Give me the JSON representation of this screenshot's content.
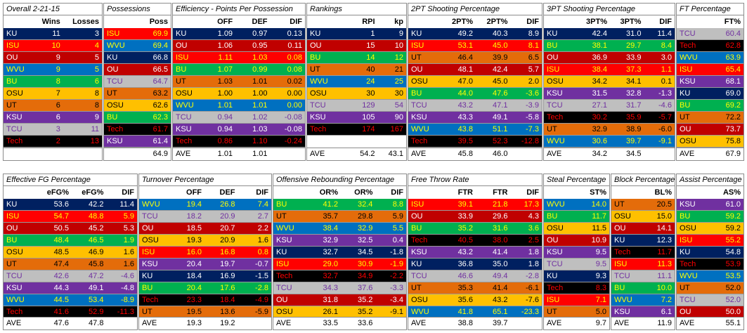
{
  "colors": {
    "KU": {
      "bg": "#002060",
      "fg": "#ffffff"
    },
    "ISU": {
      "bg": "#ff0000",
      "fg": "#ffff00"
    },
    "OU": {
      "bg": "#c00000",
      "fg": "#ffffff"
    },
    "WVU": {
      "bg": "#0070c0",
      "fg": "#ffff00"
    },
    "BU": {
      "bg": "#00b050",
      "fg": "#ffff00"
    },
    "OSU": {
      "bg": "#ffc000",
      "fg": "#000000"
    },
    "UT": {
      "bg": "#e46c0a",
      "fg": "#000000"
    },
    "KSU": {
      "bg": "#7030a0",
      "fg": "#ffffff"
    },
    "TCU": {
      "bg": "#bfbfbf",
      "fg": "#7030a0"
    },
    "Tech": {
      "bg": "#000000",
      "fg": "#ff0000"
    }
  },
  "tables": [
    {
      "title": "Overall 2-21-15",
      "headers": [
        "",
        "Wins",
        "Losses"
      ],
      "rows": [
        [
          "KU",
          "11",
          "3"
        ],
        [
          "ISU",
          "10",
          "4"
        ],
        [
          "OU",
          "9",
          "5"
        ],
        [
          "WVU",
          "9",
          "5"
        ],
        [
          "BU",
          "8",
          "6"
        ],
        [
          "OSU",
          "7",
          "8"
        ],
        [
          "UT",
          "6",
          "8"
        ],
        [
          "KSU",
          "6",
          "9"
        ],
        [
          "TCU",
          "3",
          "11"
        ],
        [
          "Tech",
          "2",
          "13"
        ]
      ],
      "ave": [
        "",
        "",
        ""
      ]
    },
    {
      "title": "Possessions",
      "headers": [
        "",
        "Poss"
      ],
      "rows": [
        [
          "ISU",
          "69.9"
        ],
        [
          "WVU",
          "69.4"
        ],
        [
          "KU",
          "66.8"
        ],
        [
          "OU",
          "66.5"
        ],
        [
          "TCU",
          "64.7"
        ],
        [
          "UT",
          "63.2"
        ],
        [
          "OSU",
          "62.6"
        ],
        [
          "BU",
          "62.3"
        ],
        [
          "Tech",
          "61.7"
        ],
        [
          "KSU",
          "61.4"
        ]
      ],
      "ave": [
        "",
        "64.9"
      ]
    },
    {
      "title": "Efficiency - Points Per Possession",
      "headers": [
        "",
        "OFF",
        "DEF",
        "DIF"
      ],
      "rows": [
        [
          "KU",
          "1.09",
          "0.97",
          "0.13"
        ],
        [
          "OU",
          "1.06",
          "0.95",
          "0.11"
        ],
        [
          "ISU",
          "1.11",
          "1.03",
          "0.08"
        ],
        [
          "BU",
          "1.07",
          "0.99",
          "0.08"
        ],
        [
          "UT",
          "1.03",
          "1.01",
          "0.02"
        ],
        [
          "OSU",
          "1.00",
          "1.00",
          "0.00"
        ],
        [
          "WVU",
          "1.01",
          "1.01",
          "0.00"
        ],
        [
          "TCU",
          "0.94",
          "1.02",
          "-0.08"
        ],
        [
          "KSU",
          "0.94",
          "1.03",
          "-0.08"
        ],
        [
          "Tech",
          "0.86",
          "1.10",
          "-0.24"
        ]
      ],
      "ave": [
        "AVE",
        "1.01",
        "1.01",
        ""
      ]
    },
    {
      "title": "Rankings",
      "headers": [
        "",
        "RPI",
        "kp"
      ],
      "rows": [
        [
          "KU",
          "1",
          "9"
        ],
        [
          "OU",
          "15",
          "10"
        ],
        [
          "BU",
          "14",
          "12"
        ],
        [
          "UT",
          "40",
          "21"
        ],
        [
          "WVU",
          "24",
          "25"
        ],
        [
          "OSU",
          "30",
          "30"
        ],
        [
          "TCU",
          "129",
          "54"
        ],
        [
          "KSU",
          "105",
          "90"
        ],
        [
          "Tech",
          "174",
          "167"
        ]
      ],
      "ave": [
        "AVE",
        "54.2",
        "43.1"
      ]
    },
    {
      "title": "2PT Shooting Percentage",
      "headers": [
        "",
        "2PT%",
        "2PT%",
        "DIF"
      ],
      "rows": [
        [
          "KU",
          "49.2",
          "40.3",
          "8.9"
        ],
        [
          "ISU",
          "53.1",
          "45.0",
          "8.1"
        ],
        [
          "UT",
          "46.4",
          "39.9",
          "6.5"
        ],
        [
          "OU",
          "48.1",
          "42.4",
          "5.7"
        ],
        [
          "OSU",
          "47.0",
          "45.0",
          "2.0"
        ],
        [
          "BU",
          "44.0",
          "47.6",
          "-3.6"
        ],
        [
          "TCU",
          "43.2",
          "47.1",
          "-3.9"
        ],
        [
          "KSU",
          "43.3",
          "49.1",
          "-5.8"
        ],
        [
          "WVU",
          "43.8",
          "51.1",
          "-7.3"
        ],
        [
          "Tech",
          "39.5",
          "52.3",
          "-12.8"
        ]
      ],
      "ave": [
        "AVE",
        "45.8",
        "46.0",
        ""
      ]
    },
    {
      "title": "3PT Shooting Percentage",
      "headers": [
        "",
        "3PT%",
        "3PT%",
        "DIF"
      ],
      "rows": [
        [
          "KU",
          "42.4",
          "31.0",
          "11.4"
        ],
        [
          "BU",
          "38.1",
          "29.7",
          "8.4"
        ],
        [
          "OU",
          "36.9",
          "33.9",
          "3.0"
        ],
        [
          "ISU",
          "38.4",
          "37.3",
          "1.1"
        ],
        [
          "OSU",
          "34.2",
          "34.1",
          "0.1"
        ],
        [
          "KSU",
          "31.5",
          "32.8",
          "-1.3"
        ],
        [
          "TCU",
          "27.1",
          "31.7",
          "-4.6"
        ],
        [
          "Tech",
          "30.2",
          "35.9",
          "-5.7"
        ],
        [
          "UT",
          "32.9",
          "38.9",
          "-6.0"
        ],
        [
          "WVU",
          "30.6",
          "39.7",
          "-9.1"
        ]
      ],
      "ave": [
        "AVE",
        "34.2",
        "34.5",
        ""
      ]
    },
    {
      "title": "FT Percentage",
      "headers": [
        "",
        "FT%"
      ],
      "rows": [
        [
          "TCU",
          "60.4"
        ],
        [
          "Tech",
          "62.8"
        ],
        [
          "WVU",
          "63.9"
        ],
        [
          "ISU",
          "65.4"
        ],
        [
          "KSU",
          "68.1"
        ],
        [
          "KU",
          "69.0"
        ],
        [
          "BU",
          "69.2"
        ],
        [
          "UT",
          "72.2"
        ],
        [
          "OU",
          "73.7"
        ],
        [
          "OSU",
          "75.8"
        ]
      ],
      "ave": [
        "AVE",
        "67.9"
      ]
    },
    {
      "title": "Effective FG Percentage",
      "headers": [
        "",
        "eFG%",
        "eFG%",
        "DIF"
      ],
      "rows": [
        [
          "KU",
          "53.6",
          "42.2",
          "11.4"
        ],
        [
          "ISU",
          "54.7",
          "48.8",
          "5.9"
        ],
        [
          "OU",
          "50.5",
          "45.2",
          "5.3"
        ],
        [
          "BU",
          "48.4",
          "46.5",
          "1.9"
        ],
        [
          "OSU",
          "48.5",
          "46.9",
          "1.6"
        ],
        [
          "UT",
          "47.4",
          "45.8",
          "1.6"
        ],
        [
          "TCU",
          "42.6",
          "47.2",
          "-4.6"
        ],
        [
          "KSU",
          "44.3",
          "49.1",
          "-4.8"
        ],
        [
          "WVU",
          "44.5",
          "53.4",
          "-8.9"
        ],
        [
          "Tech",
          "41.6",
          "52.9",
          "-11.3"
        ]
      ],
      "ave": [
        "AVE",
        "47.6",
        "47.8",
        ""
      ]
    },
    {
      "title": "Turnover Percentage",
      "headers": [
        "",
        "OFF",
        "DEF",
        "DIF"
      ],
      "rows": [
        [
          "WVU",
          "19.4",
          "26.8",
          "7.4"
        ],
        [
          "TCU",
          "18.2",
          "20.9",
          "2.7"
        ],
        [
          "OU",
          "18.5",
          "20.7",
          "2.2"
        ],
        [
          "OSU",
          "19.3",
          "20.9",
          "1.6"
        ],
        [
          "ISU",
          "16.0",
          "16.8",
          "0.8"
        ],
        [
          "KSU",
          "20.4",
          "19.7",
          "-0.7"
        ],
        [
          "KU",
          "18.4",
          "16.9",
          "-1.5"
        ],
        [
          "BU",
          "20.4",
          "17.6",
          "-2.8"
        ],
        [
          "Tech",
          "23.3",
          "18.4",
          "-4.9"
        ],
        [
          "UT",
          "19.5",
          "13.6",
          "-5.9"
        ]
      ],
      "ave": [
        "AVE",
        "19.3",
        "19.2",
        ""
      ]
    },
    {
      "title": "Offensive Rebounding Percentage",
      "headers": [
        "",
        "OR%",
        "OR%",
        "DIF"
      ],
      "rows": [
        [
          "BU",
          "41.2",
          "32.4",
          "8.8"
        ],
        [
          "UT",
          "35.7",
          "29.8",
          "5.9"
        ],
        [
          "WVU",
          "38.4",
          "32.9",
          "5.5"
        ],
        [
          "KSU",
          "32.9",
          "32.5",
          "0.4"
        ],
        [
          "KU",
          "32.7",
          "34.5",
          "-1.8"
        ],
        [
          "ISU",
          "29.0",
          "30.9",
          "-1.9"
        ],
        [
          "Tech",
          "32.7",
          "34.9",
          "-2.2"
        ],
        [
          "TCU",
          "34.3",
          "37.6",
          "-3.3"
        ],
        [
          "OU",
          "31.8",
          "35.2",
          "-3.4"
        ],
        [
          "OSU",
          "26.1",
          "35.2",
          "-9.1"
        ]
      ],
      "ave": [
        "AVE",
        "33.5",
        "33.6",
        ""
      ]
    },
    {
      "title": "Free Throw Rate",
      "headers": [
        "",
        "FTR",
        "FTR",
        "DIF"
      ],
      "rows": [
        [
          "ISU",
          "39.1",
          "21.8",
          "17.3"
        ],
        [
          "OU",
          "33.9",
          "29.6",
          "4.3"
        ],
        [
          "BU",
          "35.2",
          "31.6",
          "3.6"
        ],
        [
          "Tech",
          "40.5",
          "38.0",
          "2.5"
        ],
        [
          "KSU",
          "43.2",
          "41.4",
          "1.8"
        ],
        [
          "KU",
          "36.8",
          "35.0",
          "1.8"
        ],
        [
          "TCU",
          "46.6",
          "49.4",
          "-2.8"
        ],
        [
          "UT",
          "35.3",
          "41.4",
          "-6.1"
        ],
        [
          "OSU",
          "35.6",
          "43.2",
          "-7.6"
        ],
        [
          "WVU",
          "41.8",
          "65.1",
          "-23.3"
        ]
      ],
      "ave": [
        "AVE",
        "38.8",
        "39.7",
        ""
      ]
    },
    {
      "title": "Steal Percentage",
      "headers": [
        "",
        "ST%"
      ],
      "rows": [
        [
          "WVU",
          "14.0"
        ],
        [
          "BU",
          "11.7"
        ],
        [
          "OSU",
          "11.5"
        ],
        [
          "OU",
          "10.9"
        ],
        [
          "KSU",
          "9.5"
        ],
        [
          "TCU",
          "9.5"
        ],
        [
          "KU",
          "9.3"
        ],
        [
          "Tech",
          "8.3"
        ],
        [
          "ISU",
          "7.1"
        ],
        [
          "UT",
          "5.0"
        ]
      ],
      "ave": [
        "AVE",
        "9.7"
      ]
    },
    {
      "title": "Block Percentage",
      "headers": [
        "",
        "BL%"
      ],
      "rows": [
        [
          "UT",
          "20.5"
        ],
        [
          "OSU",
          "15.0"
        ],
        [
          "OU",
          "14.1"
        ],
        [
          "KU",
          "12.3"
        ],
        [
          "Tech",
          "11.7"
        ],
        [
          "ISU",
          "11.3"
        ],
        [
          "TCU",
          "11.1"
        ],
        [
          "BU",
          "10.0"
        ],
        [
          "WVU",
          "7.2"
        ],
        [
          "KSU",
          "6.1"
        ]
      ],
      "ave": [
        "AVE",
        "11.9"
      ]
    },
    {
      "title": "Assist Percentage",
      "headers": [
        "",
        "AS%"
      ],
      "rows": [
        [
          "KSU",
          "61.0"
        ],
        [
          "BU",
          "59.2"
        ],
        [
          "OSU",
          "59.2"
        ],
        [
          "ISU",
          "55.2"
        ],
        [
          "KU",
          "54.8"
        ],
        [
          "Tech",
          "53.9"
        ],
        [
          "WVU",
          "53.5"
        ],
        [
          "UT",
          "52.0"
        ],
        [
          "TCU",
          "52.0"
        ],
        [
          "OU",
          "50.0"
        ]
      ],
      "ave": [
        "AVE",
        "55.1"
      ]
    }
  ]
}
